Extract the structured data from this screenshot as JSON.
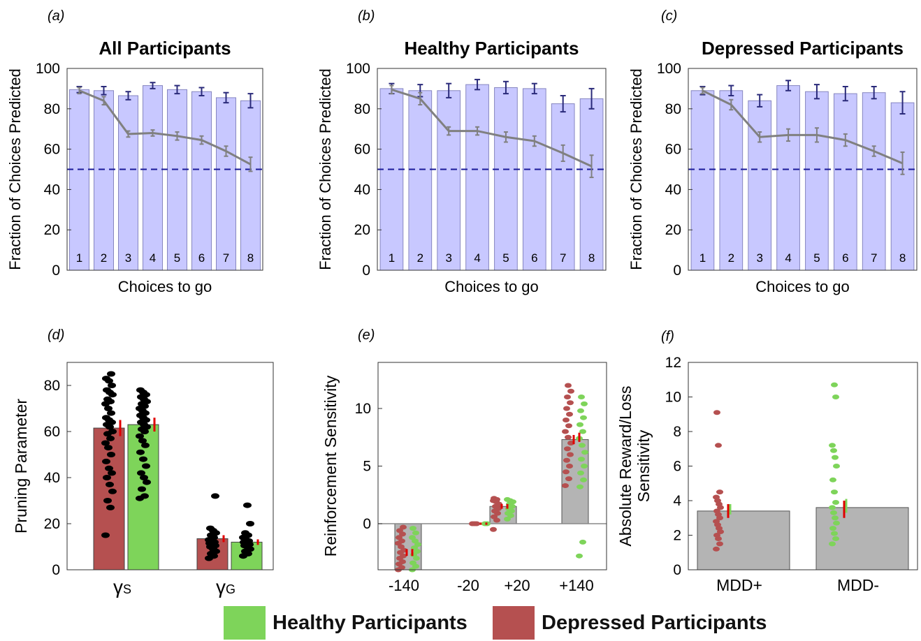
{
  "colors": {
    "bar_fill": "#c8c8ff",
    "bar_stroke": "#8686c0",
    "err_blue": "#2a2a7a",
    "line_gray": "#808080",
    "chance_line": "#1a1a9a",
    "healthy": "#7ed45a",
    "depressed": "#b55050",
    "gray_bar": "#b4b4b4",
    "points": "#000000",
    "mean_err": "#e00000"
  },
  "legend": {
    "healthy_label": "Healthy Participants",
    "depressed_label": "Depressed Participants"
  },
  "chart_data": [
    {
      "panel": "(a)",
      "type": "bar",
      "title": "All Participants",
      "xlabel": "Choices to go",
      "ylabel": "Fraction of Choices Predicted",
      "categories": [
        "1",
        "2",
        "3",
        "4",
        "5",
        "6",
        "7",
        "8"
      ],
      "values": [
        89.5,
        89.0,
        86.5,
        91.5,
        89.5,
        88.5,
        85.5,
        84.0
      ],
      "errors": [
        1.5,
        2.0,
        2.0,
        1.5,
        2.0,
        2.0,
        2.5,
        3.5
      ],
      "line_values": [
        89.0,
        84.0,
        67.5,
        68.0,
        66.5,
        64.5,
        59.0,
        52.5
      ],
      "line_errors": [
        1.5,
        2.0,
        1.5,
        1.5,
        2.0,
        2.0,
        2.5,
        3.5
      ],
      "reference_line": 50,
      "ylim": [
        0,
        100
      ],
      "yticks": [
        0,
        20,
        40,
        60,
        80,
        100
      ]
    },
    {
      "panel": "(b)",
      "type": "bar",
      "title": "Healthy Participants",
      "xlabel": "Choices to go",
      "ylabel": "Fraction of Choices Predicted",
      "categories": [
        "1",
        "2",
        "3",
        "4",
        "5",
        "6",
        "7",
        "8"
      ],
      "values": [
        90.0,
        89.0,
        89.0,
        92.0,
        90.5,
        90.0,
        82.5,
        85.0
      ],
      "errors": [
        2.5,
        3.0,
        3.5,
        2.5,
        3.0,
        2.5,
        4.0,
        5.0
      ],
      "line_values": [
        89.5,
        85.0,
        69.0,
        69.0,
        66.0,
        64.0,
        58.0,
        51.5
      ],
      "line_errors": [
        2.0,
        3.0,
        2.0,
        2.0,
        2.5,
        2.5,
        4.0,
        5.5
      ],
      "reference_line": 50,
      "ylim": [
        0,
        100
      ],
      "yticks": [
        0,
        20,
        40,
        60,
        80,
        100
      ]
    },
    {
      "panel": "(c)",
      "type": "bar",
      "title": "Depressed Participants",
      "xlabel": "Choices to go",
      "ylabel": "Fraction of Choices Predicted",
      "categories": [
        "1",
        "2",
        "3",
        "4",
        "5",
        "6",
        "7",
        "8"
      ],
      "values": [
        89.0,
        89.0,
        84.0,
        91.5,
        88.5,
        87.5,
        88.0,
        83.0
      ],
      "errors": [
        2.0,
        2.5,
        3.0,
        2.5,
        3.5,
        3.5,
        3.0,
        5.5
      ],
      "line_values": [
        89.0,
        82.0,
        66.0,
        67.0,
        67.0,
        64.5,
        59.0,
        53.0
      ],
      "line_errors": [
        1.5,
        2.5,
        2.5,
        3.0,
        3.5,
        3.0,
        2.5,
        5.5
      ],
      "reference_line": 50,
      "ylim": [
        0,
        100
      ],
      "yticks": [
        0,
        20,
        40,
        60,
        80,
        100
      ]
    },
    {
      "panel": "(d)",
      "type": "bar",
      "ylabel": "Pruning Parameter",
      "group_labels": [
        "γS",
        "γG"
      ],
      "ylim": [
        0,
        90
      ],
      "yticks": [
        0,
        20,
        40,
        60,
        80
      ],
      "series": [
        {
          "name": "Depressed Participants",
          "color_key": "depressed",
          "values": [
            61.5,
            13.5
          ],
          "errors": [
            3.5,
            1.5
          ],
          "points": [
            [
              15,
              27,
              30,
              34,
              37,
              40,
              42,
              44,
              47,
              50,
              53,
              55,
              57,
              59,
              60,
              62,
              63,
              64,
              65,
              66,
              68,
              70,
              72,
              73,
              74,
              76,
              77,
              78,
              80,
              82,
              83,
              85
            ],
            [
              5,
              6,
              7,
              8,
              9,
              10,
              10.5,
              11,
              11.5,
              12,
              12.5,
              13,
              14,
              15,
              16,
              17,
              18,
              32
            ]
          ]
        },
        {
          "name": "Healthy Participants",
          "color_key": "healthy",
          "values": [
            63.0,
            12.0
          ],
          "errors": [
            3.0,
            1.2
          ],
          "points": [
            [
              31,
              32,
              35,
              38,
              40,
              42,
              45,
              48,
              51,
              54,
              56,
              58,
              60,
              61,
              62,
              63,
              64,
              65,
              66,
              67,
              68,
              69,
              70,
              71,
              72,
              73,
              74,
              75,
              76,
              77,
              78
            ],
            [
              6,
              7,
              8,
              9,
              10,
              10.5,
              11,
              11.5,
              12,
              12.5,
              13,
              14,
              15,
              16,
              20,
              28
            ]
          ]
        }
      ]
    },
    {
      "panel": "(e)",
      "type": "bar",
      "ylabel": "Reinforcement Sensitivity",
      "categories": [
        "-140",
        "-20",
        "+20",
        "+140"
      ],
      "values": [
        -4.0,
        0.0,
        1.5,
        7.3
      ],
      "ylim": [
        -4,
        14
      ],
      "yticks": [
        0,
        5,
        10
      ],
      "series": [
        {
          "name": "Depressed Participants",
          "color_key": "depressed",
          "means": [
            -2.5,
            0.0,
            1.5,
            7.3
          ],
          "errors": [
            0.3,
            0.1,
            0.2,
            0.4
          ],
          "points": [
            [
              -4,
              -3.8,
              -3.5,
              -3.3,
              -3.0,
              -2.8,
              -2.5,
              -2.3,
              -2.0,
              -1.7,
              -1.5,
              -1.2,
              -0.9,
              -0.6,
              -0.3
            ],
            [
              0,
              0,
              0
            ],
            [
              -0.5,
              0.3,
              0.6,
              0.9,
              1.1,
              1.3,
              1.5,
              1.7,
              1.9,
              2.0,
              2.1,
              2.2
            ],
            [
              3.3,
              3.9,
              4.5,
              5.0,
              5.5,
              6.0,
              6.5,
              7.0,
              7.5,
              8.0,
              8.5,
              9.0,
              9.5,
              10.0,
              10.5,
              11.0,
              11.5,
              12.0
            ]
          ]
        },
        {
          "name": "Healthy Participants",
          "color_key": "healthy",
          "means": [
            -2.5,
            0.0,
            1.5,
            7.5
          ],
          "errors": [
            0.3,
            0.1,
            0.2,
            0.4
          ],
          "points": [
            [
              -4,
              -3.7,
              -3.4,
              -3.0,
              -2.7,
              -2.4,
              -2.1,
              -1.8,
              -1.5,
              -1.2,
              -0.8,
              -0.4
            ],
            [
              0,
              0
            ],
            [
              0.4,
              0.7,
              0.9,
              1.1,
              1.3,
              1.5,
              1.7,
              1.9,
              2.0,
              2.1
            ],
            [
              -2.8,
              -1.6,
              3.2,
              3.8,
              4.4,
              5.0,
              5.6,
              6.2,
              6.8,
              7.4,
              8.0,
              8.6,
              9.2,
              9.8,
              10.4,
              11.0
            ]
          ]
        }
      ]
    },
    {
      "panel": "(f)",
      "type": "bar",
      "ylabel": "Absolute Reward/Loss Sensitivity",
      "categories": [
        "MDD+",
        "MDD-"
      ],
      "values": [
        3.4,
        3.6
      ],
      "ylim": [
        0,
        12
      ],
      "yticks": [
        0,
        2,
        4,
        6,
        8,
        10,
        12
      ],
      "series": [
        {
          "name": "Depressed Participants",
          "color_key": "depressed",
          "means": [
            3.4,
            3.5
          ],
          "errors": [
            0.4,
            0.5
          ],
          "points": [
            [
              1.2,
              1.5,
              1.8,
              2.0,
              2.2,
              2.4,
              2.6,
              2.8,
              3.0,
              3.2,
              3.4,
              3.6,
              3.8,
              4.0,
              4.2,
              4.5,
              7.2,
              9.1
            ],
            []
          ]
        },
        {
          "name": "Healthy Participants",
          "color_key": "healthy",
          "means": [
            3.5,
            3.7
          ],
          "errors": [
            0.3,
            0.4
          ],
          "points": [
            [],
            [
              1.5,
              1.8,
              2.1,
              2.4,
              2.7,
              3.0,
              3.3,
              3.6,
              3.9,
              4.5,
              5.2,
              6.0,
              6.5,
              6.9,
              7.2,
              10.0,
              10.7
            ]
          ]
        }
      ]
    }
  ]
}
